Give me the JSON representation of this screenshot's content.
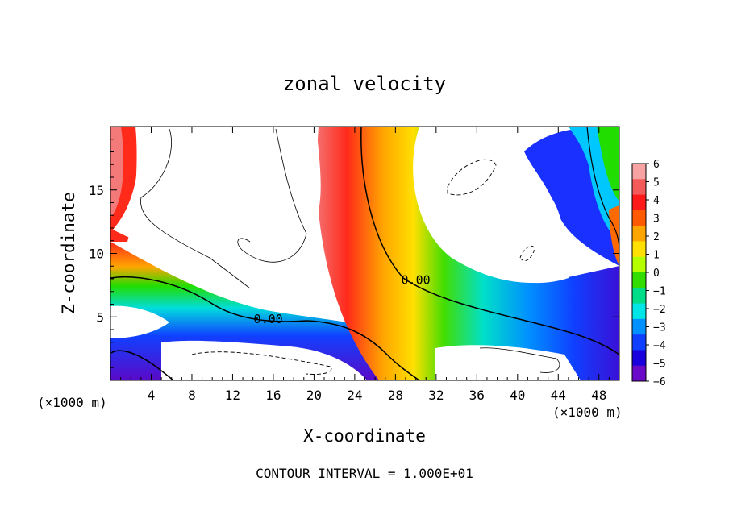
{
  "chart_data": {
    "type": "heatmap",
    "title": "zonal velocity",
    "xlabel": "X-coordinate",
    "ylabel": "Z-coordinate",
    "x_unit": "(×1000 m)",
    "z_unit": "(×1000 m)",
    "x_ticks": [
      4,
      8,
      12,
      16,
      20,
      24,
      28,
      32,
      36,
      40,
      44,
      48
    ],
    "y_ticks": [
      5,
      10,
      15
    ],
    "xlim": [
      0,
      50
    ],
    "ylim": [
      0,
      20
    ],
    "colorbar": {
      "ticks": [
        6,
        5,
        4,
        3,
        2,
        1,
        0,
        -1,
        -2,
        -3,
        -4,
        -5,
        -6
      ],
      "colors": [
        "#f7a3a3",
        "#f45a5a",
        "#ff1a1a",
        "#ff5a00",
        "#ffa500",
        "#ffe000",
        "#b4ff00",
        "#33dd00",
        "#00dd88",
        "#00e5e5",
        "#0090ff",
        "#1040ff",
        "#1a00dd",
        "#6a0ac8"
      ]
    },
    "contour_labels": [
      {
        "text": "0.00",
        "x": 15.5,
        "z": 4.5
      },
      {
        "text": "0.00",
        "x": 30.0,
        "z": 7.6
      }
    ],
    "footer": "CONTOUR INTERVAL = 1.000E+01"
  }
}
